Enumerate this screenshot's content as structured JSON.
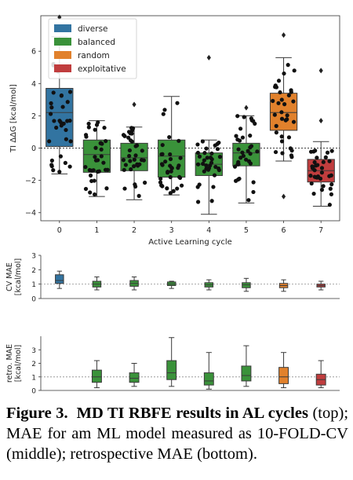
{
  "chart_data": [
    {
      "type": "box",
      "xlabel": "Active Learning cycle",
      "ylabel": "TI ΔΔG [kcal/mol]",
      "ylim": [
        -4.5,
        8.2
      ],
      "yticks": [
        -4,
        -2,
        0,
        2,
        4,
        6
      ],
      "categories": [
        "0",
        "1",
        "2",
        "3",
        "4",
        "5",
        "6",
        "7"
      ],
      "reference_line": 0,
      "legend": {
        "placement": "top-left",
        "entries": [
          {
            "label": "diverse",
            "color": "#3274a1"
          },
          {
            "label": "balanced",
            "color": "#3a923a"
          },
          {
            "label": "random",
            "color": "#e1812c"
          },
          {
            "label": "exploitative",
            "color": "#c03d3e"
          }
        ]
      },
      "boxes": [
        {
          "cycle": "0",
          "strategy": "diverse",
          "color": "#3274a1",
          "whisker_low": -1.6,
          "q1": 0.1,
          "median": 2.2,
          "q3": 3.7,
          "whisker_high": 6.9,
          "outliers": [
            8.1
          ]
        },
        {
          "cycle": "1",
          "strategy": "balanced",
          "color": "#3a923a",
          "whisker_low": -3.0,
          "q1": -1.5,
          "median": -0.4,
          "q3": 0.5,
          "whisker_high": 1.7,
          "outliers": []
        },
        {
          "cycle": "2",
          "strategy": "balanced",
          "color": "#3a923a",
          "whisker_low": -3.2,
          "q1": -1.4,
          "median": -0.6,
          "q3": 0.3,
          "whisker_high": 1.3,
          "outliers": [
            2.7
          ]
        },
        {
          "cycle": "3",
          "strategy": "balanced",
          "color": "#3a923a",
          "whisker_low": -2.9,
          "q1": -1.8,
          "median": -0.5,
          "q3": 0.5,
          "whisker_high": 3.2,
          "outliers": []
        },
        {
          "cycle": "4",
          "strategy": "balanced",
          "color": "#3a923a",
          "whisker_low": -4.1,
          "q1": -1.7,
          "median": -1.0,
          "q3": -0.3,
          "whisker_high": 0.5,
          "outliers": [
            5.6
          ]
        },
        {
          "cycle": "5",
          "strategy": "balanced",
          "color": "#3a923a",
          "whisker_low": -3.4,
          "q1": -1.1,
          "median": -0.3,
          "q3": 0.3,
          "whisker_high": 2.0,
          "outliers": [
            2.5
          ]
        },
        {
          "cycle": "6",
          "strategy": "random",
          "color": "#e1812c",
          "whisker_low": -0.8,
          "q1": 1.1,
          "median": 2.2,
          "q3": 3.4,
          "whisker_high": 5.6,
          "outliers": [
            7.0,
            -3.0
          ]
        },
        {
          "cycle": "7",
          "strategy": "exploitative",
          "color": "#c03d3e",
          "whisker_low": -3.6,
          "q1": -2.1,
          "median": -1.4,
          "q3": -0.7,
          "whisker_high": 0.4,
          "outliers": [
            1.7,
            4.8
          ]
        }
      ]
    },
    {
      "type": "box",
      "ylabel": "CV MAE\n[kcal/mol]",
      "ylim": [
        0,
        3
      ],
      "yticks": [
        0,
        1,
        2,
        3
      ],
      "categories": [
        "0",
        "1",
        "2",
        "3",
        "4",
        "5",
        "6",
        "7"
      ],
      "reference_line": 1,
      "boxes": [
        {
          "cycle": "0",
          "color": "#3274a1",
          "whisker_low": 0.7,
          "q1": 1.05,
          "median": 1.25,
          "q3": 1.65,
          "whisker_high": 1.9
        },
        {
          "cycle": "1",
          "color": "#3a923a",
          "whisker_low": 0.6,
          "q1": 0.8,
          "median": 1.0,
          "q3": 1.2,
          "whisker_high": 1.5
        },
        {
          "cycle": "2",
          "color": "#3a923a",
          "whisker_low": 0.6,
          "q1": 0.85,
          "median": 1.05,
          "q3": 1.25,
          "whisker_high": 1.5
        },
        {
          "cycle": "3",
          "color": "#3a923a",
          "whisker_low": 0.7,
          "q1": 0.9,
          "median": 1.0,
          "q3": 1.15,
          "whisker_high": 1.2
        },
        {
          "cycle": "4",
          "color": "#3a923a",
          "whisker_low": 0.6,
          "q1": 0.8,
          "median": 0.95,
          "q3": 1.1,
          "whisker_high": 1.3
        },
        {
          "cycle": "5",
          "color": "#3a923a",
          "whisker_low": 0.5,
          "q1": 0.75,
          "median": 0.95,
          "q3": 1.1,
          "whisker_high": 1.4
        },
        {
          "cycle": "6",
          "color": "#e1812c",
          "whisker_low": 0.5,
          "q1": 0.75,
          "median": 0.9,
          "q3": 1.05,
          "whisker_high": 1.3
        },
        {
          "cycle": "7",
          "color": "#c03d3e",
          "whisker_low": 0.6,
          "q1": 0.8,
          "median": 0.9,
          "q3": 1.0,
          "whisker_high": 1.2
        }
      ]
    },
    {
      "type": "box",
      "ylabel": "retro. MAE\n[kcal/mol]",
      "ylim": [
        0,
        4
      ],
      "yticks": [
        0,
        1,
        2,
        3
      ],
      "categories": [
        "0",
        "1",
        "2",
        "3",
        "4",
        "5",
        "6",
        "7"
      ],
      "reference_line": 1,
      "boxes": [
        {
          "cycle": "1",
          "color": "#3a923a",
          "whisker_low": 0.2,
          "q1": 0.6,
          "median": 1.0,
          "q3": 1.5,
          "whisker_high": 2.2
        },
        {
          "cycle": "2",
          "color": "#3a923a",
          "whisker_low": 0.3,
          "q1": 0.6,
          "median": 0.9,
          "q3": 1.3,
          "whisker_high": 2.0
        },
        {
          "cycle": "3",
          "color": "#3a923a",
          "whisker_low": 0.3,
          "q1": 0.8,
          "median": 1.3,
          "q3": 2.2,
          "whisker_high": 3.9
        },
        {
          "cycle": "4",
          "color": "#3a923a",
          "whisker_low": 0.1,
          "q1": 0.4,
          "median": 0.7,
          "q3": 1.3,
          "whisker_high": 2.8
        },
        {
          "cycle": "5",
          "color": "#3a923a",
          "whisker_low": 0.3,
          "q1": 0.7,
          "median": 1.1,
          "q3": 1.8,
          "whisker_high": 3.3
        },
        {
          "cycle": "6",
          "color": "#e1812c",
          "whisker_low": 0.2,
          "q1": 0.5,
          "median": 1.0,
          "q3": 1.7,
          "whisker_high": 2.8
        },
        {
          "cycle": "7",
          "color": "#c03d3e",
          "whisker_low": 0.2,
          "q1": 0.4,
          "median": 0.8,
          "q3": 1.2,
          "whisker_high": 2.2
        }
      ]
    }
  ],
  "caption": {
    "label": "Figure 3.",
    "title": "MD TI RBFE results in AL cycles",
    "body": "(top); MAE for am ML model measured as 10-FOLD-CV (middle); retrospective MAE (bottom)."
  }
}
